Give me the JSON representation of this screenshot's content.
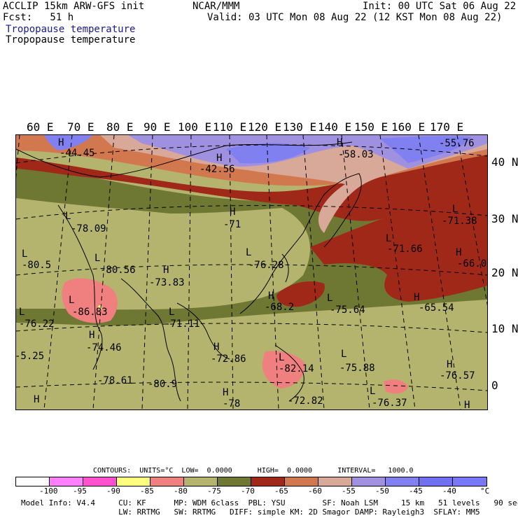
{
  "header": {
    "model": "ACCLIP 15km ARW-GFS init",
    "forecast": "Fcst:   51 h",
    "var1": "Tropopause temperature",
    "var2": "Tropopause temperature",
    "center": "NCAR/MMM",
    "init": "Init: 00 UTC Sat 06 Aug 22",
    "valid": "Valid: 03 UTC Mon 08 Aug 22 (12 KST Mon 08 Aug 22)"
  },
  "map": {
    "lon_labels": [
      "60 E",
      "70 E",
      "80 E",
      "90 E",
      "100 E",
      "110 E",
      "120 E",
      "130 E",
      "140 E",
      "150 E",
      "160 E",
      "170 E"
    ],
    "lat_labels": [
      "40 N",
      "30 N",
      "20 N",
      "10 N",
      "0"
    ],
    "annotations": [
      {
        "type": "H",
        "value": "-44.45"
      },
      {
        "type": "H",
        "value": "-42.56"
      },
      {
        "type": "H",
        "value": "-58.03"
      },
      {
        "type": "",
        "value": "-55.76"
      },
      {
        "type": "L",
        "value": "-78.09"
      },
      {
        "type": "H",
        "value": "-71"
      },
      {
        "type": "L",
        "value": "-71.38"
      },
      {
        "type": "L",
        "value": "-80.5"
      },
      {
        "type": "L",
        "value": "-80.56"
      },
      {
        "type": "L",
        "value": "-76.28"
      },
      {
        "type": "L",
        "value": "-71.66"
      },
      {
        "type": "H",
        "value": "-66.0"
      },
      {
        "type": "H",
        "value": "-73.83"
      },
      {
        "type": "L",
        "value": "-86.83"
      },
      {
        "type": "H",
        "value": "-68.2"
      },
      {
        "type": "L",
        "value": "-75.64"
      },
      {
        "type": "H",
        "value": "-65.54"
      },
      {
        "type": "L",
        "value": "-76.22"
      },
      {
        "type": "L",
        "value": "-71.11"
      },
      {
        "type": "H",
        "value": "-74.46"
      },
      {
        "type": "",
        "value": "-5.25"
      },
      {
        "type": "H",
        "value": "-72.86"
      },
      {
        "type": "L",
        "value": "-82.14"
      },
      {
        "type": "L",
        "value": "-75.88"
      },
      {
        "type": "H",
        "value": "-76.57"
      },
      {
        "type": "",
        "value": "-78.61"
      },
      {
        "type": "",
        "value": "-80.9"
      },
      {
        "type": "H",
        "value": "-78"
      },
      {
        "type": "",
        "value": "-72.82"
      },
      {
        "type": "L",
        "value": "-76.37"
      },
      {
        "type": "H",
        "value": ""
      }
    ]
  },
  "contours_line": "CONTOURS:  UNITS=°C  LOW=  0.0000      HIGH=  0.0000      INTERVAL=   1000.0",
  "colorbar": {
    "colors": [
      "#ffffff",
      "#ff80ff",
      "#ff50d0",
      "#ffff80",
      "#f08080",
      "#b4b46e",
      "#6e7832",
      "#a02818",
      "#d2784e",
      "#d8a898",
      "#a090e0",
      "#8080f0",
      "#7070f0",
      "#7878f8"
    ],
    "labels": [
      "-100",
      "-95",
      "-90",
      "-85",
      "-80",
      "-75",
      "-70",
      "-65",
      "-60",
      "-55",
      "-50",
      "-45",
      "-40"
    ],
    "unit": "°C"
  },
  "footer": {
    "line1": "Model Info: V4.4     CU: KF      MP: WDM 6class  PBL: YSU        SF: Noah LSM     15 km   51 levels   90 sec",
    "line2": "                     LW: RRTMG   SW: RRTMG   DIFF: simple KM: 2D Smagor DAMP: Rayleigh3  SFLAY: MM5"
  }
}
